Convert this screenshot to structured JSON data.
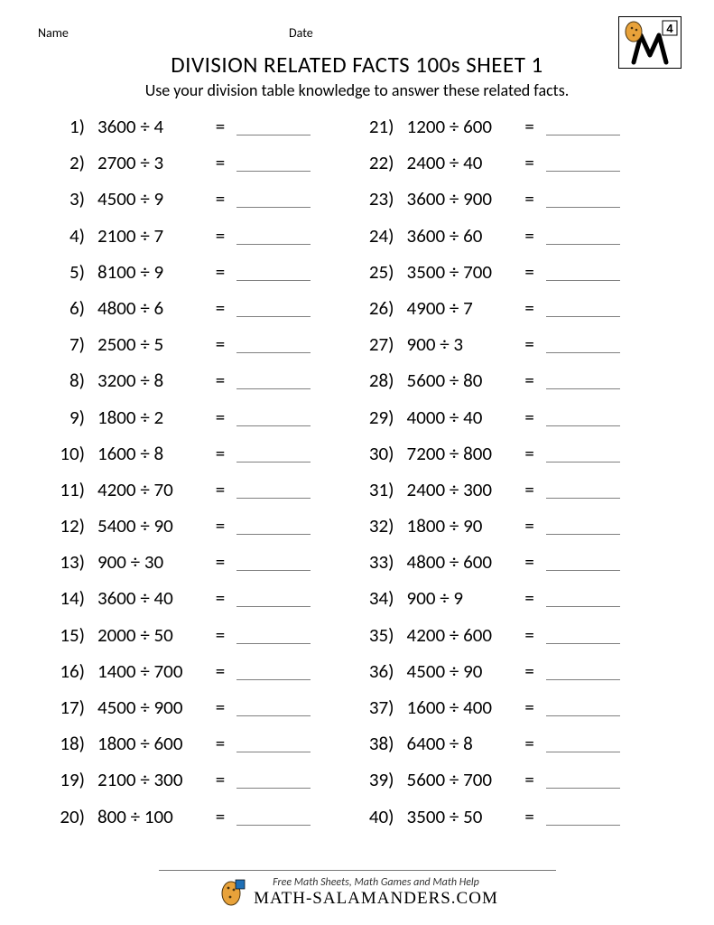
{
  "header": {
    "name_label": "Name",
    "date_label": "Date",
    "grade_number": "4"
  },
  "title": "DIVISION RELATED FACTS 100s SHEET 1",
  "subtitle": "Use your division table knowledge to answer these related facts.",
  "divide_sign": "÷",
  "equals_sign": "=",
  "colors": {
    "text": "#000000",
    "background": "#ffffff",
    "underline": "#7f7f7f",
    "salamander_orange": "#e8a23a",
    "salamander_spots": "#4a3410",
    "badge_blue": "#1f6fb5"
  },
  "problems_left": [
    {
      "n": "1)",
      "a": "3600",
      "b": "4"
    },
    {
      "n": "2)",
      "a": "2700",
      "b": "3"
    },
    {
      "n": "3)",
      "a": "4500",
      "b": "9"
    },
    {
      "n": "4)",
      "a": "2100",
      "b": "7"
    },
    {
      "n": "5)",
      "a": "8100",
      "b": "9"
    },
    {
      "n": "6)",
      "a": "4800",
      "b": "6"
    },
    {
      "n": "7)",
      "a": "2500",
      "b": "5"
    },
    {
      "n": "8)",
      "a": "3200",
      "b": "8"
    },
    {
      "n": "9)",
      "a": "1800",
      "b": "2"
    },
    {
      "n": "10)",
      "a": "1600",
      "b": "8"
    },
    {
      "n": "11)",
      "a": "4200",
      "b": "70"
    },
    {
      "n": "12)",
      "a": "5400",
      "b": "90"
    },
    {
      "n": "13)",
      "a": "900",
      "b": "30"
    },
    {
      "n": "14)",
      "a": "3600",
      "b": "40"
    },
    {
      "n": "15)",
      "a": "2000",
      "b": "50"
    },
    {
      "n": "16)",
      "a": "1400",
      "b": "700"
    },
    {
      "n": "17)",
      "a": "4500",
      "b": "900"
    },
    {
      "n": "18)",
      "a": "1800",
      "b": "600"
    },
    {
      "n": "19)",
      "a": "2100",
      "b": "300"
    },
    {
      "n": "20)",
      "a": "800",
      "b": "100"
    }
  ],
  "problems_right": [
    {
      "n": "21)",
      "a": "1200",
      "b": "600"
    },
    {
      "n": "22)",
      "a": "2400",
      "b": "40"
    },
    {
      "n": "23)",
      "a": "3600",
      "b": "900"
    },
    {
      "n": "24)",
      "a": "3600",
      "b": "60"
    },
    {
      "n": "25)",
      "a": "3500",
      "b": "700"
    },
    {
      "n": "26)",
      "a": "4900",
      "b": "7"
    },
    {
      "n": "27)",
      "a": "900",
      "b": "3"
    },
    {
      "n": "28)",
      "a": "5600",
      "b": "80"
    },
    {
      "n": "29)",
      "a": "4000",
      "b": "40"
    },
    {
      "n": "30)",
      "a": "7200",
      "b": "800"
    },
    {
      "n": "31)",
      "a": "2400",
      "b": "300"
    },
    {
      "n": "32)",
      "a": "1800",
      "b": "90"
    },
    {
      "n": "33)",
      "a": "4800",
      "b": "600"
    },
    {
      "n": "34)",
      "a": "900",
      "b": "9"
    },
    {
      "n": "35)",
      "a": "4200",
      "b": "600"
    },
    {
      "n": "36)",
      "a": "4500",
      "b": "90"
    },
    {
      "n": "37)",
      "a": "1600",
      "b": "400"
    },
    {
      "n": "38)",
      "a": "6400",
      "b": "8"
    },
    {
      "n": "39)",
      "a": "5600",
      "b": "700"
    },
    {
      "n": "40)",
      "a": "3500",
      "b": "50"
    }
  ],
  "footer": {
    "line1": "Free Math Sheets, Math Games and Math Help",
    "line2": "MATH-SALAMANDERS.COM"
  }
}
